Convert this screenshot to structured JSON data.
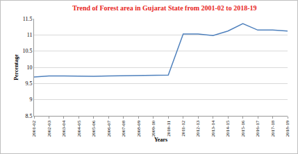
{
  "chart_data": {
    "type": "line",
    "title": "Trend of Forest area in Gujarat State from 2001-02 to 2018-19",
    "x_label": "Years",
    "y_label": "Percentage",
    "categories": [
      "2001-02",
      "2002-03",
      "2003-04",
      "2004-05",
      "2005-06",
      "2006-07",
      "2007-08",
      "2008-09",
      "2009-10",
      "2010-11",
      "2011-12",
      "2012-13",
      "2013-14",
      "2014-15",
      "2015-16",
      "2016-17",
      "2017-18",
      "2018-19"
    ],
    "values": [
      9.7,
      9.73,
      9.73,
      9.72,
      9.72,
      9.73,
      9.74,
      9.74,
      9.75,
      9.76,
      11.03,
      11.03,
      10.98,
      11.12,
      11.35,
      11.15,
      11.15,
      11.12
    ],
    "color": "#4f81bd",
    "ylim": [
      8.5,
      11.5
    ],
    "yticks": [
      8.5,
      9,
      9.5,
      10,
      10.5,
      11,
      11.5
    ],
    "grid": true
  }
}
